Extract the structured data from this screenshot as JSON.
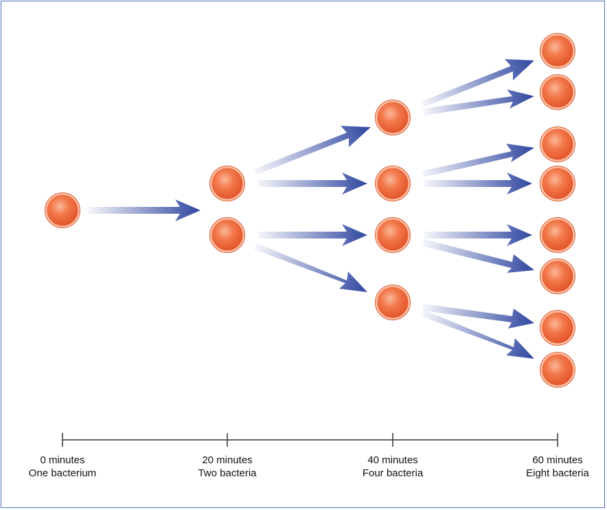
{
  "diagram": {
    "colors": {
      "bacterium_fill": "#f06a3a",
      "bacterium_rim": "#f9c3a9",
      "arrow": "#3046a0",
      "timeline": "#333333"
    },
    "icons": {
      "bacterium": "bacterium-icon",
      "arrow": "division-arrow-icon"
    },
    "timeline": [
      {
        "time": "0 minutes",
        "count": "One bacterium"
      },
      {
        "time": "20 minutes",
        "count": "Two bacteria"
      },
      {
        "time": "40 minutes",
        "count": "Four bacteria"
      },
      {
        "time": "60 minutes",
        "count": "Eight bacteria"
      }
    ]
  }
}
